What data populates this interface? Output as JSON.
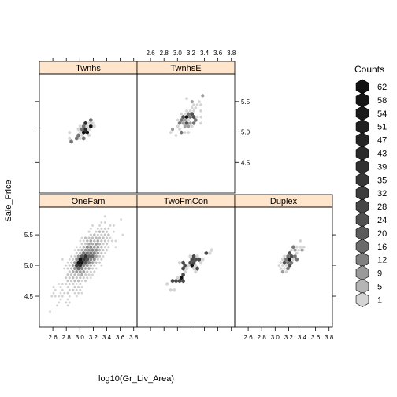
{
  "chart_data": {
    "type": "hexbin",
    "xlabel": "log10(Gr_Liv_Area)",
    "ylabel": "Sale_Price",
    "xlim": [
      2.4,
      3.85
    ],
    "ylim": [
      4.0,
      5.95
    ],
    "x_ticks": [
      2.6,
      2.8,
      3.0,
      3.2,
      3.4,
      3.6,
      3.8
    ],
    "x_tick_labels": [
      "2.6",
      "2.8",
      "3.0",
      "3.2",
      "3.4",
      "3.6",
      "3.8"
    ],
    "y_ticks": [
      4.5,
      5.0,
      5.5
    ],
    "y_tick_labels": [
      "4.5",
      "5.0",
      "5.5"
    ],
    "strip_color": "#ffe5cc",
    "hex_fill_light": "#d4d4d4",
    "hex_fill_dark": "#111111",
    "panels": [
      {
        "label": "Twnhs",
        "clusters": [
          {
            "cx": 3.05,
            "cy": 5.02,
            "sx": 0.09,
            "sy": 0.08,
            "n": 45
          }
        ]
      },
      {
        "label": "TwnhsE",
        "clusters": [
          {
            "cx": 3.15,
            "cy": 5.22,
            "sx": 0.1,
            "sy": 0.12,
            "n": 85
          }
        ]
      },
      {
        "label": "OneFam",
        "clusters": [
          {
            "cx": 3.12,
            "cy": 5.14,
            "sx": 0.1,
            "sy": 0.12,
            "n": 1200
          },
          {
            "cx": 3.0,
            "cy": 5.05,
            "sx": 0.05,
            "sy": 0.05,
            "n": 550
          },
          {
            "cx": 3.2,
            "cy": 5.3,
            "sx": 0.16,
            "sy": 0.14,
            "n": 250
          },
          {
            "cx": 2.95,
            "cy": 4.8,
            "sx": 0.15,
            "sy": 0.16,
            "n": 160
          }
        ]
      },
      {
        "label": "TwoFmCon",
        "clusters": [
          {
            "cx": 3.2,
            "cy": 5.0,
            "sx": 0.14,
            "sy": 0.08,
            "n": 55
          }
        ]
      },
      {
        "label": "Duplex",
        "clusters": [
          {
            "cx": 3.2,
            "cy": 5.08,
            "sx": 0.08,
            "sy": 0.07,
            "n": 70
          }
        ]
      }
    ],
    "legend": {
      "title": "Counts",
      "labels": [
        "62",
        "58",
        "54",
        "51",
        "47",
        "43",
        "39",
        "35",
        "32",
        "28",
        "24",
        "20",
        "16",
        "12",
        "9",
        "5",
        "1"
      ],
      "fills": [
        "#111111",
        "#161616",
        "#1b1b1b",
        "#202020",
        "#252525",
        "#2b2b2b",
        "#303030",
        "#373737",
        "#3e3e3e",
        "#464646",
        "#505050",
        "#5b5b5b",
        "#6b6b6b",
        "#808080",
        "#9a9a9a",
        "#b5b5b5",
        "#d4d4d4"
      ]
    }
  }
}
